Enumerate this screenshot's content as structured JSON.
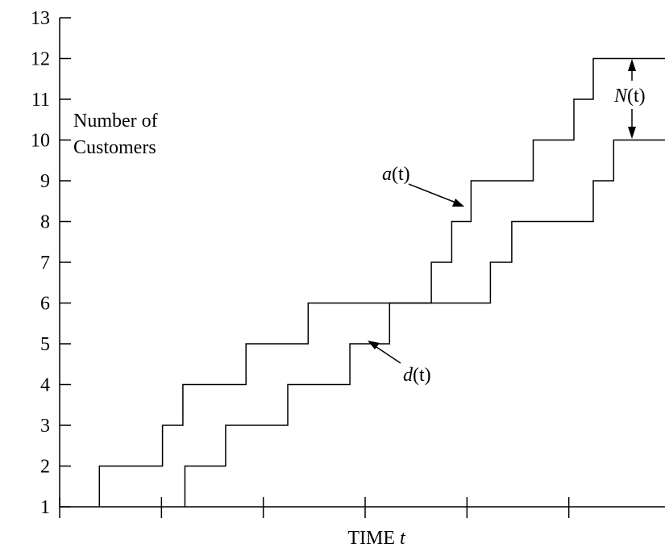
{
  "chart_data": {
    "type": "line",
    "step": true,
    "xlabel": "TIME t",
    "xlabel_text": "TIME",
    "xlabel_var": "t",
    "ylabel_lines": [
      "Number of",
      "Customers"
    ],
    "ylim": [
      1,
      13
    ],
    "yticks": [
      1,
      2,
      3,
      4,
      5,
      6,
      7,
      8,
      9,
      10,
      11,
      12,
      13
    ],
    "xlim": [
      0,
      6
    ],
    "xticks": [
      0,
      1,
      2,
      3,
      4,
      5,
      6
    ],
    "show_x_tick_labels": false,
    "grid": false,
    "series": [
      {
        "name": "a(t)",
        "steps": [
          [
            0.39,
            2
          ],
          [
            1.01,
            3
          ],
          [
            1.21,
            4
          ],
          [
            1.83,
            5
          ],
          [
            2.44,
            6
          ],
          [
            3.65,
            7
          ],
          [
            3.85,
            8
          ],
          [
            4.04,
            9
          ],
          [
            4.65,
            10
          ],
          [
            5.05,
            11
          ],
          [
            5.24,
            12
          ]
        ],
        "end": 6
      },
      {
        "name": "d(t)",
        "steps": [
          [
            1.23,
            2
          ],
          [
            1.63,
            3
          ],
          [
            2.24,
            4
          ],
          [
            2.85,
            5
          ],
          [
            3.24,
            6
          ],
          [
            4.23,
            7
          ],
          [
            4.44,
            8
          ],
          [
            5.24,
            9
          ],
          [
            5.44,
            10
          ]
        ],
        "end": 6
      }
    ],
    "annotations": {
      "a_label": {
        "var": "a",
        "arg": "(t)"
      },
      "d_label": {
        "var": "d",
        "arg": "(t)"
      },
      "N_label": {
        "var": "N",
        "arg": "(t)"
      }
    }
  }
}
